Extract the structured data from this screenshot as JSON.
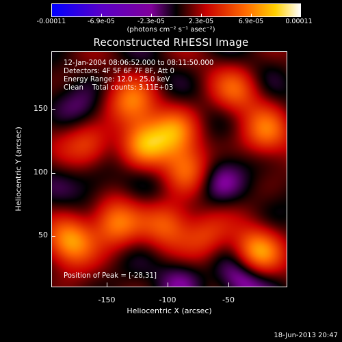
{
  "colorbar": {
    "ticks": [
      "-0.00011",
      "-6.9e-05",
      "-2.3e-05",
      "2.3e-05",
      "6.9e-05",
      "0.00011"
    ],
    "units": "(photons cm⁻² s⁻¹ asec⁻²)"
  },
  "title": "Reconstructed RHESSI Image",
  "info": {
    "time_range": "12-Jan-2004 08:06:52.000 to 08:11:50.000",
    "detectors": "Detectors: 4F 5F 6F 7F 8F, Att 0",
    "energy_range": "Energy Range: 12.0 - 25.0 keV",
    "method": "Clean    Total counts: 3.11E+03",
    "peak": "Position of Peak = [-28,31]"
  },
  "chart_data": {
    "type": "heatmap",
    "title": "Reconstructed RHESSI Image",
    "xlabel": "Heliocentric X (arcsec)",
    "ylabel": "Heliocentric Y (arcsec)",
    "xlim": [
      -196,
      -3
    ],
    "ylim": [
      3,
      196
    ],
    "xticks": [
      -150,
      -100,
      -50
    ],
    "yticks": [
      50,
      100,
      150
    ],
    "color_scale": [
      -0.00011,
      0.00011
    ],
    "colormap": [
      "#0000ff",
      "#5a00c8",
      "#8000a0",
      "#000000",
      "#c80000",
      "#ff6a00",
      "#ffd000",
      "#ffffff"
    ],
    "peak": [
      -28,
      31
    ],
    "bright_sources": [
      {
        "x": -130,
        "y": 155,
        "level": 0.8
      },
      {
        "x": -120,
        "y": 120,
        "level": 0.9
      },
      {
        "x": -95,
        "y": 130,
        "level": 0.85
      },
      {
        "x": -85,
        "y": 100,
        "level": 0.7
      },
      {
        "x": -180,
        "y": 40,
        "level": 1.0
      },
      {
        "x": -145,
        "y": 55,
        "level": 0.9
      },
      {
        "x": -28,
        "y": 31,
        "level": 1.0
      },
      {
        "x": -20,
        "y": 130,
        "level": 0.75
      },
      {
        "x": -45,
        "y": 165,
        "level": 0.6
      },
      {
        "x": -165,
        "y": 120,
        "level": 0.65
      },
      {
        "x": -100,
        "y": 55,
        "level": 0.7
      },
      {
        "x": -70,
        "y": 45,
        "level": 0.6
      }
    ],
    "dark_sources": [
      {
        "x": -60,
        "y": 90,
        "level": 0.7
      },
      {
        "x": -160,
        "y": 90,
        "level": 0.55
      },
      {
        "x": -40,
        "y": 10,
        "level": 0.9
      },
      {
        "x": -90,
        "y": 10,
        "level": 0.6
      },
      {
        "x": -170,
        "y": 150,
        "level": 0.4
      }
    ]
  },
  "timestamp": "18-Jun-2013 20:47"
}
